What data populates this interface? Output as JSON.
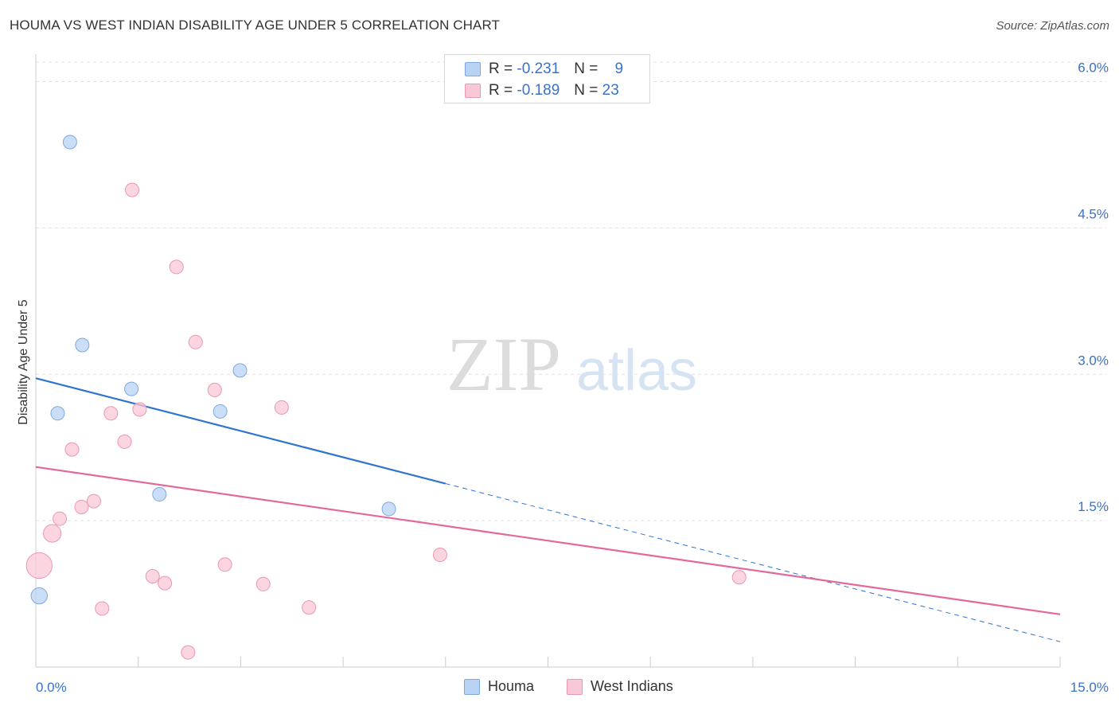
{
  "title": "HOUMA VS WEST INDIAN DISABILITY AGE UNDER 5 CORRELATION CHART",
  "source": "Source: ZipAtlas.com",
  "watermark": {
    "zip": "ZIP",
    "atlas": "atlas"
  },
  "legend": {
    "houma": {
      "r_label": "R =",
      "r_value": "-0.231",
      "n_label": "N =",
      "n_value": "9"
    },
    "west_indians": {
      "r_label": "R =",
      "r_value": "-0.189",
      "n_label": "N =",
      "n_value": "23"
    }
  },
  "bottom_legend": {
    "houma": "Houma",
    "west_indians": "West Indians"
  },
  "colors": {
    "houma_fill": "#b9d3f5",
    "houma_stroke": "#7fa8de",
    "houma_line": "#2e74d0",
    "wi_fill": "#f9c8d6",
    "wi_stroke": "#eb97b1",
    "wi_line": "#e2699a",
    "axis_text": "#3a72c8"
  },
  "chart_data": {
    "type": "scatter",
    "title": "HOUMA VS WEST INDIAN DISABILITY AGE UNDER 5 CORRELATION CHART",
    "xlabel": "",
    "ylabel": "Disability Age Under 5",
    "xlim": [
      0,
      15
    ],
    "ylim": [
      0,
      6.2
    ],
    "x_tick_labels": [
      "0.0%",
      "15.0%"
    ],
    "y_ticks": [
      1.5,
      3.0,
      4.5,
      6.0
    ],
    "y_tick_labels": [
      "1.5%",
      "3.0%",
      "4.5%",
      "6.0%"
    ],
    "series": [
      {
        "name": "Houma",
        "points": [
          {
            "x": 0.5,
            "y": 5.38,
            "s": 1
          },
          {
            "x": 0.68,
            "y": 3.3,
            "s": 1
          },
          {
            "x": 0.32,
            "y": 2.6,
            "s": 1
          },
          {
            "x": 1.4,
            "y": 2.85,
            "s": 1
          },
          {
            "x": 2.99,
            "y": 3.04,
            "s": 1
          },
          {
            "x": 2.7,
            "y": 2.62,
            "s": 1
          },
          {
            "x": 1.81,
            "y": 1.77,
            "s": 1
          },
          {
            "x": 5.17,
            "y": 1.62,
            "s": 1
          },
          {
            "x": 0.05,
            "y": 0.73,
            "s": 1.2
          }
        ],
        "trend": {
          "x0": 0,
          "y0": 2.96,
          "x1": 6,
          "y1": 1.88,
          "dash_to_x": 15,
          "dash_to_y": 0.26
        }
      },
      {
        "name": "West Indians",
        "points": [
          {
            "x": 1.41,
            "y": 4.89,
            "s": 1
          },
          {
            "x": 2.06,
            "y": 4.1,
            "s": 1
          },
          {
            "x": 2.34,
            "y": 3.33,
            "s": 1
          },
          {
            "x": 2.62,
            "y": 2.84,
            "s": 1
          },
          {
            "x": 3.6,
            "y": 2.66,
            "s": 1
          },
          {
            "x": 1.52,
            "y": 2.64,
            "s": 1
          },
          {
            "x": 1.1,
            "y": 2.6,
            "s": 1
          },
          {
            "x": 1.3,
            "y": 2.31,
            "s": 1
          },
          {
            "x": 0.53,
            "y": 2.23,
            "s": 1
          },
          {
            "x": 0.85,
            "y": 1.7,
            "s": 1
          },
          {
            "x": 0.67,
            "y": 1.64,
            "s": 1
          },
          {
            "x": 0.35,
            "y": 1.52,
            "s": 1
          },
          {
            "x": 0.24,
            "y": 1.37,
            "s": 1.3
          },
          {
            "x": 0.05,
            "y": 1.04,
            "s": 1.9
          },
          {
            "x": 2.77,
            "y": 1.05,
            "s": 1
          },
          {
            "x": 5.92,
            "y": 1.15,
            "s": 1
          },
          {
            "x": 1.71,
            "y": 0.93,
            "s": 1
          },
          {
            "x": 1.89,
            "y": 0.86,
            "s": 1
          },
          {
            "x": 3.33,
            "y": 0.85,
            "s": 1
          },
          {
            "x": 10.3,
            "y": 0.92,
            "s": 1
          },
          {
            "x": 0.97,
            "y": 0.6,
            "s": 1
          },
          {
            "x": 4.0,
            "y": 0.61,
            "s": 1
          },
          {
            "x": 2.23,
            "y": 0.15,
            "s": 1
          }
        ],
        "trend": {
          "x0": 0,
          "y0": 2.05,
          "x1": 15,
          "y1": 0.54
        }
      }
    ]
  }
}
